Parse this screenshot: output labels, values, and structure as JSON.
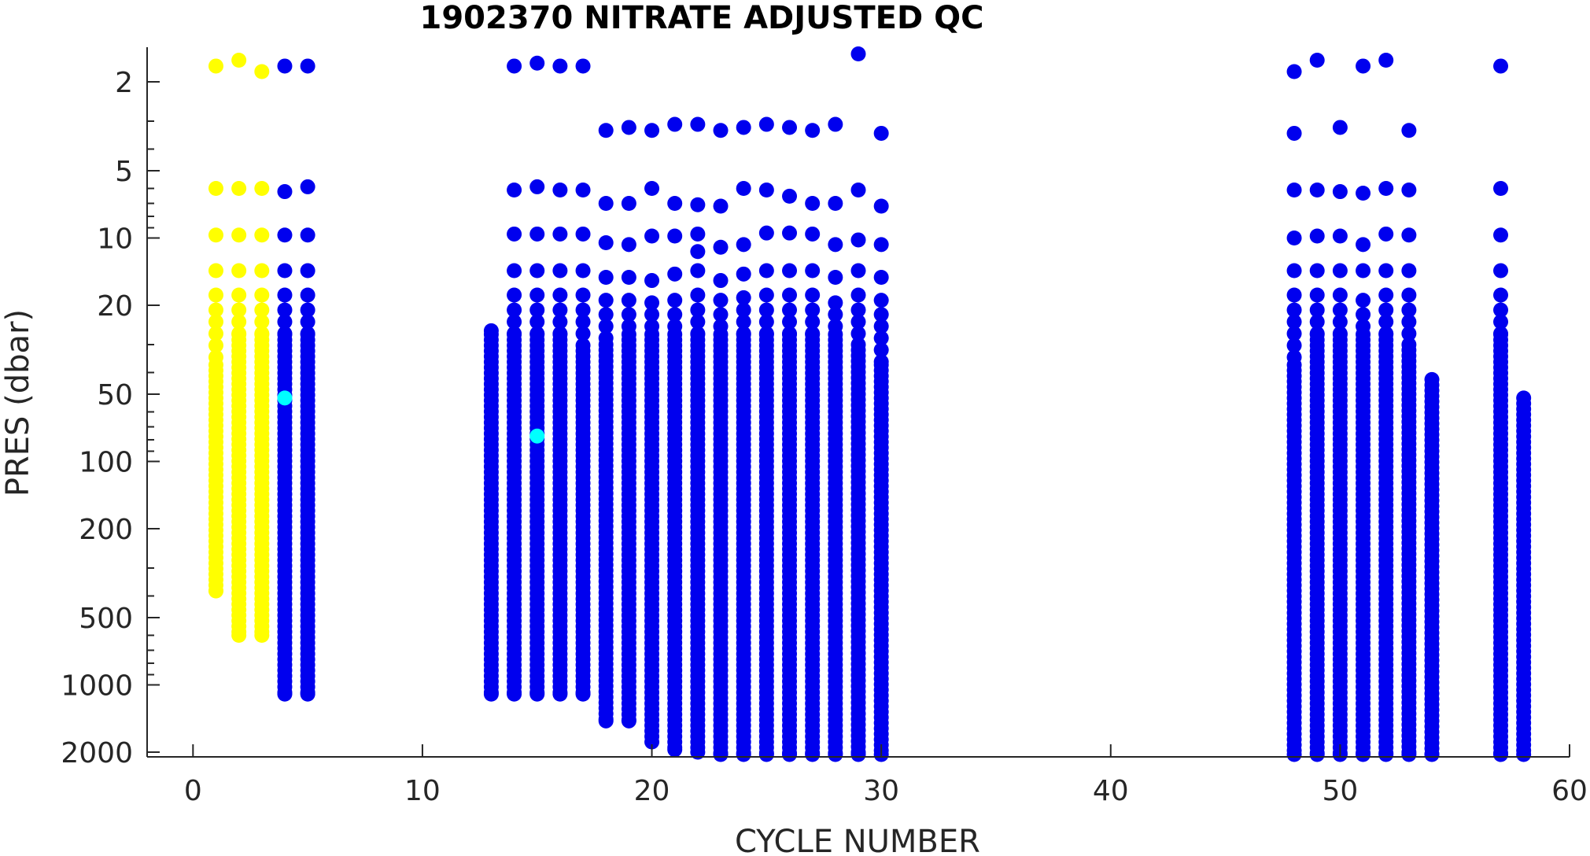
{
  "chart_data": {
    "type": "scatter",
    "title": "1902370  NITRATE ADJUSTED QC",
    "xlabel": "CYCLE NUMBER",
    "ylabel": "PRES (dbar)",
    "xlim": [
      -2,
      60
    ],
    "ylim": [
      1.4,
      2100
    ],
    "y_scale": "log",
    "y_reversed": true,
    "grid": false,
    "xticks": [
      0,
      10,
      20,
      30,
      40,
      50,
      60
    ],
    "xtick_labels": [
      "0",
      "10",
      "20",
      "30",
      "40",
      "50",
      "60"
    ],
    "yticks": [
      2,
      5,
      10,
      20,
      50,
      100,
      200,
      500,
      1000,
      2000
    ],
    "ytick_labels": [
      "2",
      "5",
      "10",
      "20",
      "50",
      "100",
      "200",
      "500",
      "1000",
      "2000"
    ],
    "colors": {
      "yellow": "#ffff00",
      "blue": "#0000ee",
      "cyan": "#00ffff"
    },
    "series": [
      {
        "color": "yellow",
        "profiles": [
          {
            "cycle": 1,
            "top_points": [
              1.7,
              6,
              9.7,
              14,
              18
            ],
            "column_top": 21,
            "dense_from": 37,
            "max_pres": 380
          },
          {
            "cycle": 2,
            "top_points": [
              1.6,
              6,
              9.7,
              14,
              18
            ],
            "column_top": 21,
            "dense_from": 27,
            "max_pres": 600
          },
          {
            "cycle": 3,
            "top_points": [
              1.8,
              6,
              9.7,
              14,
              18
            ],
            "column_top": 21,
            "dense_from": 27,
            "max_pres": 600
          }
        ]
      },
      {
        "color": "blue",
        "profiles": [
          {
            "cycle": 4,
            "top_points": [
              1.7,
              6.2,
              9.7,
              14,
              18
            ],
            "column_top": 21,
            "dense_from": 27,
            "max_pres": 1100
          },
          {
            "cycle": 5,
            "top_points": [
              1.7,
              5.9,
              9.7,
              14,
              18
            ],
            "column_top": 21,
            "dense_from": 27,
            "max_pres": 1100
          },
          {
            "cycle": 13,
            "top_points": [],
            "column_top": 26,
            "dense_from": 27,
            "max_pres": 1100
          },
          {
            "cycle": 14,
            "top_points": [
              1.7,
              6.1,
              9.6,
              14,
              18
            ],
            "column_top": 21,
            "dense_from": 27,
            "max_pres": 1100
          },
          {
            "cycle": 15,
            "top_points": [
              1.65,
              5.9,
              9.6,
              14,
              18
            ],
            "column_top": 21,
            "dense_from": 27,
            "max_pres": 1100
          },
          {
            "cycle": 16,
            "top_points": [
              1.7,
              6.1,
              9.6,
              14,
              18
            ],
            "column_top": 21,
            "dense_from": 27,
            "max_pres": 1100
          },
          {
            "cycle": 17,
            "top_points": [
              1.7,
              6.1,
              9.6,
              14,
              18
            ],
            "column_top": 21,
            "dense_from": 32,
            "max_pres": 1100
          },
          {
            "cycle": 18,
            "top_points": [
              3.3,
              7,
              10.5,
              15,
              19
            ],
            "column_top": 22,
            "dense_from": 30,
            "max_pres": 1450
          },
          {
            "cycle": 19,
            "top_points": [
              3.2,
              7,
              10.7,
              15,
              19
            ],
            "column_top": 22,
            "dense_from": 27,
            "max_pres": 1450
          },
          {
            "cycle": 20,
            "top_points": [
              3.3,
              6,
              9.8,
              15.5,
              19.5
            ],
            "column_top": 22,
            "dense_from": 27,
            "max_pres": 1800
          },
          {
            "cycle": 21,
            "top_points": [
              3.1,
              7,
              9.8,
              14.5,
              19
            ],
            "column_top": 22,
            "dense_from": 27,
            "max_pres": 1950
          },
          {
            "cycle": 22,
            "top_points": [
              3.1,
              7.1,
              9.6,
              11.5,
              14,
              18
            ],
            "column_top": 21,
            "dense_from": 27,
            "max_pres": 2000
          },
          {
            "cycle": 23,
            "top_points": [
              3.3,
              7.2,
              11,
              15.5,
              19
            ],
            "column_top": 22,
            "dense_from": 27,
            "max_pres": 2050
          },
          {
            "cycle": 24,
            "top_points": [
              3.2,
              6,
              10.7,
              14.5,
              18.5
            ],
            "column_top": 21,
            "dense_from": 27,
            "max_pres": 2050
          },
          {
            "cycle": 25,
            "top_points": [
              3.1,
              6.1,
              9.5,
              14,
              18
            ],
            "column_top": 21,
            "dense_from": 27,
            "max_pres": 2050
          },
          {
            "cycle": 26,
            "top_points": [
              3.2,
              6.5,
              9.5,
              14,
              18
            ],
            "column_top": 21,
            "dense_from": 27,
            "max_pres": 2050
          },
          {
            "cycle": 27,
            "top_points": [
              3.3,
              7,
              9.6,
              14,
              18
            ],
            "column_top": 21,
            "dense_from": 27,
            "max_pres": 2050
          },
          {
            "cycle": 28,
            "top_points": [
              3.1,
              7,
              10.7,
              15,
              19.5
            ],
            "column_top": 22,
            "dense_from": 27,
            "max_pres": 2050
          },
          {
            "cycle": 29,
            "top_points": [
              1.5,
              6.1,
              10.2,
              14,
              18
            ],
            "column_top": 21,
            "dense_from": 30,
            "max_pres": 2050
          },
          {
            "cycle": 30,
            "top_points": [
              3.4,
              7.2,
              10.7,
              15,
              19
            ],
            "column_top": 22,
            "dense_from": 37,
            "max_pres": 2050
          },
          {
            "cycle": 48,
            "top_points": [
              1.8,
              3.4,
              6.1,
              10,
              14,
              18
            ],
            "column_top": 21,
            "dense_from": 37,
            "max_pres": 2050
          },
          {
            "cycle": 49,
            "top_points": [
              1.6,
              6.1,
              9.8,
              14,
              18
            ],
            "column_top": 21,
            "dense_from": 27,
            "max_pres": 2050
          },
          {
            "cycle": 50,
            "top_points": [
              3.2,
              6.2,
              9.8,
              14,
              18
            ],
            "column_top": 21,
            "dense_from": 27,
            "max_pres": 2050
          },
          {
            "cycle": 51,
            "top_points": [
              1.7,
              6.3,
              10.7,
              14,
              19
            ],
            "column_top": 22,
            "dense_from": 27,
            "max_pres": 2050
          },
          {
            "cycle": 52,
            "top_points": [
              1.6,
              6,
              9.6,
              14,
              18
            ],
            "column_top": 21,
            "dense_from": 27,
            "max_pres": 2050
          },
          {
            "cycle": 53,
            "top_points": [
              3.3,
              6.1,
              9.7,
              14,
              18
            ],
            "column_top": 21,
            "dense_from": 30,
            "max_pres": 2050
          },
          {
            "cycle": 54,
            "top_points": [],
            "column_top": 43,
            "dense_from": 43,
            "max_pres": 2050
          },
          {
            "cycle": 57,
            "top_points": [
              1.7,
              6,
              9.7,
              14,
              18
            ],
            "column_top": 21,
            "dense_from": 27,
            "max_pres": 2050
          },
          {
            "cycle": 58,
            "top_points": [],
            "column_top": 52,
            "dense_from": 52,
            "max_pres": 2050
          }
        ]
      },
      {
        "color": "cyan",
        "points": [
          {
            "cycle": 4,
            "pres": 52
          },
          {
            "cycle": 15,
            "pres": 77
          }
        ]
      }
    ]
  }
}
